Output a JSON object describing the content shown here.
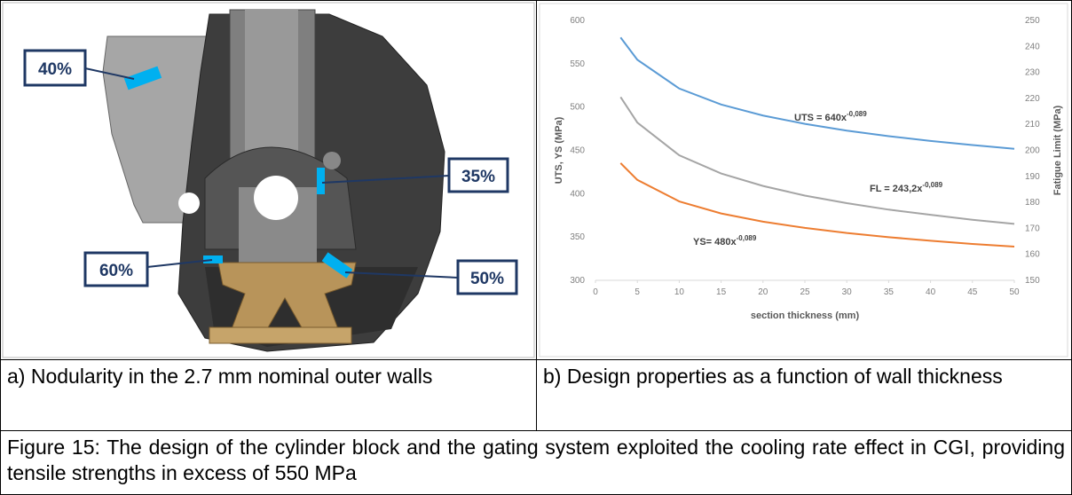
{
  "panel_a": {
    "labels": [
      "40%",
      "35%",
      "60%",
      "50%"
    ],
    "caption": "a) Nodularity in the 2.7 mm nominal outer walls"
  },
  "panel_b": {
    "caption": "b) Design properties as a function of wall thickness"
  },
  "figure_caption": "Figure 15:  The design of the cylinder block and the gating system exploited the cooling rate effect in CGI, providing tensile strengths in excess of 550 MPa",
  "chart_data": {
    "type": "line",
    "xlabel": "section thickness (mm)",
    "ylabel": "UTS, YS (MPa)",
    "y2label": "Fatigue Limit (MPa)",
    "x": [
      3,
      5,
      10,
      15,
      20,
      25,
      30,
      35,
      40,
      45,
      50
    ],
    "xlim": [
      0,
      50
    ],
    "xticks": [
      0,
      5,
      10,
      15,
      20,
      25,
      30,
      35,
      40,
      45,
      50
    ],
    "ylim": [
      300,
      600
    ],
    "yticks": [
      300,
      350,
      400,
      450,
      500,
      550,
      600
    ],
    "y2lim": [
      150,
      250
    ],
    "y2ticks": [
      150,
      160,
      170,
      180,
      190,
      200,
      210,
      220,
      230,
      240,
      250
    ],
    "grid": false,
    "series": [
      {
        "name": "UTS",
        "color": "#5b9bd5",
        "values": [
          580.3,
          554.6,
          521.4,
          502.9,
          490.2,
          480.6,
          472.8,
          466.4,
          460.9,
          456.1,
          451.8
        ]
      },
      {
        "name": "FL",
        "color": "#a5a5a5",
        "axis": "y2",
        "values": [
          220.5,
          210.7,
          198.1,
          191.1,
          186.3,
          182.6,
          179.7,
          177.2,
          175.2,
          173.3,
          171.7
        ]
      },
      {
        "name": "YS",
        "color": "#ed7d31",
        "values": [
          435.3,
          415.9,
          391.1,
          377.2,
          367.7,
          360.5,
          354.6,
          349.8,
          345.7,
          342.0,
          338.9
        ]
      }
    ],
    "annotations": [
      {
        "text": "UTS = 640x",
        "sup": "-0,089"
      },
      {
        "text": "FL = 243,2x",
        "sup": "-0,089"
      },
      {
        "text": "YS= 480x",
        "sup": "-0,089"
      }
    ]
  }
}
